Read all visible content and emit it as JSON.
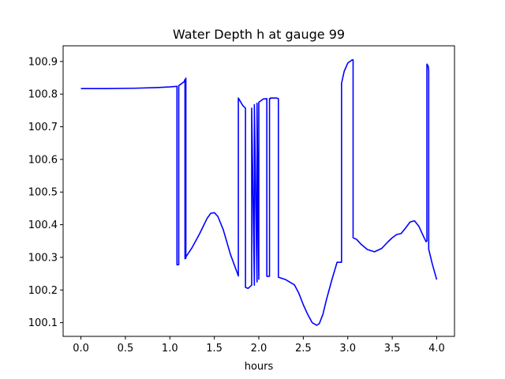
{
  "chart_data": {
    "type": "line",
    "title": "Water Depth h at gauge 99",
    "xlabel": "hours",
    "ylabel": "",
    "xlim": [
      -0.2,
      4.2
    ],
    "ylim": [
      100.058,
      100.948
    ],
    "grid": false,
    "legend": "none",
    "x_ticks": [
      "0.0",
      "0.5",
      "1.0",
      "1.5",
      "2.0",
      "2.5",
      "3.0",
      "3.5",
      "4.0"
    ],
    "y_ticks": [
      "100.1",
      "100.2",
      "100.3",
      "100.4",
      "100.5",
      "100.6",
      "100.7",
      "100.8",
      "100.9"
    ],
    "series": [
      {
        "color": "#0000ff",
        "x": [
          0.0,
          0.3,
          0.6,
          0.85,
          1.0,
          1.08,
          1.08,
          1.1,
          1.1,
          1.16,
          1.17,
          1.17,
          1.18,
          1.18,
          1.17,
          1.25,
          1.33,
          1.42,
          1.46,
          1.5,
          1.54,
          1.6,
          1.68,
          1.77,
          1.77,
          1.82,
          1.85,
          1.85,
          1.88,
          1.92,
          1.92,
          1.95,
          1.95,
          1.98,
          1.98,
          2.0,
          2.0,
          2.05,
          2.09,
          2.09,
          2.12,
          2.12,
          2.13,
          2.13,
          2.2,
          2.22,
          2.22,
          2.3,
          2.4,
          2.45,
          2.5,
          2.55,
          2.6,
          2.65,
          2.68,
          2.72,
          2.76,
          2.82,
          2.88,
          2.93,
          2.93,
          2.96,
          3.0,
          3.05,
          3.06,
          3.06,
          3.1,
          3.15,
          3.22,
          3.3,
          3.38,
          3.45,
          3.5,
          3.55,
          3.6,
          3.65,
          3.7,
          3.75,
          3.8,
          3.85,
          3.88,
          3.89,
          3.89,
          3.905,
          3.91,
          3.91,
          3.95,
          4.0
        ],
        "y": [
          100.817,
          100.817,
          100.818,
          100.82,
          100.822,
          100.824,
          100.277,
          100.278,
          100.826,
          100.838,
          100.845,
          100.296,
          100.297,
          100.849,
          100.297,
          100.33,
          100.37,
          100.42,
          100.435,
          100.437,
          100.425,
          100.385,
          100.31,
          100.243,
          100.788,
          100.765,
          100.757,
          100.208,
          100.205,
          100.215,
          100.757,
          100.215,
          100.768,
          100.225,
          100.772,
          100.233,
          100.775,
          100.785,
          100.786,
          100.242,
          100.242,
          100.786,
          100.786,
          100.788,
          100.788,
          100.786,
          100.239,
          100.232,
          100.216,
          100.19,
          100.155,
          100.125,
          100.1,
          100.092,
          100.097,
          100.125,
          100.17,
          100.23,
          100.285,
          100.285,
          100.833,
          100.87,
          100.895,
          100.905,
          100.905,
          100.36,
          100.355,
          100.34,
          100.324,
          100.317,
          100.327,
          100.347,
          100.36,
          100.37,
          100.373,
          100.39,
          100.408,
          100.412,
          100.395,
          100.365,
          100.348,
          100.35,
          100.892,
          100.885,
          100.873,
          100.325,
          100.28,
          100.232
        ]
      }
    ]
  }
}
